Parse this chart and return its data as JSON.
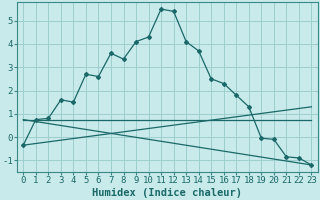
{
  "title": "",
  "xlabel": "Humidex (Indice chaleur)",
  "ylabel": "",
  "background_color": "#c8eaea",
  "grid_color": "#9ecece",
  "line_color": "#1a6868",
  "xlim": [
    -0.5,
    23.5
  ],
  "ylim": [
    -1.5,
    5.8
  ],
  "xticks": [
    0,
    1,
    2,
    3,
    4,
    5,
    6,
    7,
    8,
    9,
    10,
    11,
    12,
    13,
    14,
    15,
    16,
    17,
    18,
    19,
    20,
    21,
    22,
    23
  ],
  "yticks": [
    -1,
    0,
    1,
    2,
    3,
    4,
    5
  ],
  "series": {
    "main": {
      "x": [
        0,
        1,
        2,
        3,
        4,
        5,
        6,
        7,
        8,
        9,
        10,
        11,
        12,
        13,
        14,
        15,
        16,
        17,
        18,
        19,
        20,
        21,
        22,
        23
      ],
      "y": [
        -0.35,
        0.75,
        0.8,
        1.6,
        1.5,
        2.7,
        2.6,
        3.6,
        3.35,
        4.1,
        4.3,
        5.5,
        5.4,
        4.1,
        3.7,
        2.5,
        2.3,
        1.8,
        1.3,
        -0.05,
        -0.1,
        -0.85,
        -0.9,
        -1.2
      ]
    },
    "line1": {
      "x": [
        0,
        23
      ],
      "y": [
        -0.35,
        1.3
      ]
    },
    "line2": {
      "x": [
        0,
        23
      ],
      "y": [
        0.75,
        0.75
      ]
    },
    "line3": {
      "x": [
        0,
        23
      ],
      "y": [
        0.75,
        -1.2
      ]
    }
  },
  "tick_fontsize": 6.5,
  "label_fontsize": 7.5,
  "spine_color": "#3a8888"
}
